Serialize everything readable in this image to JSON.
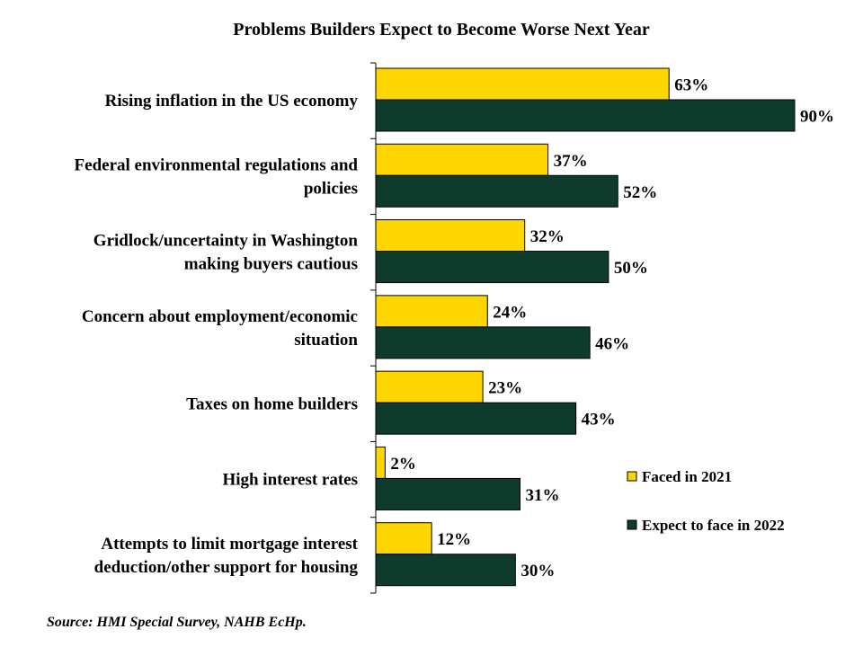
{
  "chart_data": {
    "type": "bar",
    "orientation": "horizontal",
    "title": "Problems Builders Expect to Become Worse Next Year",
    "categories": [
      [
        "Rising inflation in the US economy"
      ],
      [
        "Federal environmental regulations and",
        "policies"
      ],
      [
        "Gridlock/uncertainty in Washington",
        "making buyers cautious"
      ],
      [
        "Concern about employment/economic",
        "situation"
      ],
      [
        "Taxes on home builders"
      ],
      [
        "High interest rates"
      ],
      [
        "Attempts to limit mortgage interest",
        "deduction/other support for housing"
      ]
    ],
    "series": [
      {
        "name": "Faced in 2021",
        "color": "#FFD700",
        "values": [
          63,
          37,
          32,
          24,
          23,
          2,
          12
        ]
      },
      {
        "name": "Expect to face in 2022",
        "color": "#0E3B2C",
        "values": [
          90,
          52,
          50,
          46,
          43,
          31,
          30
        ]
      }
    ],
    "value_suffix": "%",
    "xlim": [
      0,
      100
    ],
    "grid": false,
    "legend_position": "right"
  },
  "source": "Source: HMI Special Survey, NAHB EcHp."
}
